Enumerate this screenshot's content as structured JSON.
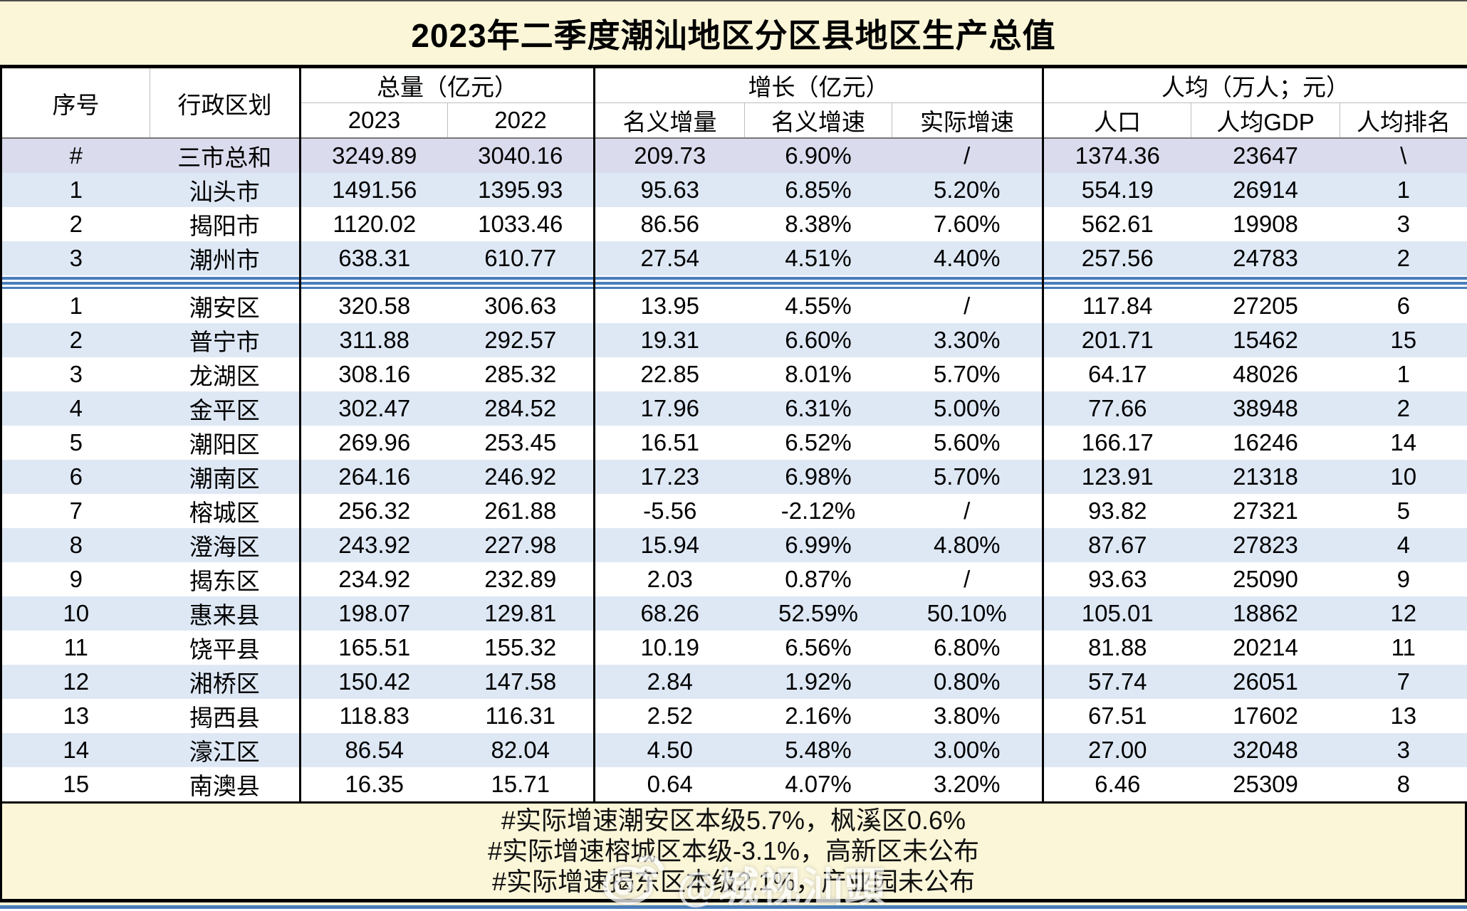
{
  "chart_data": {
    "type": "table",
    "title": "2023年二季度潮汕地区分区县地区生产总值",
    "header": {
      "seq": "序号",
      "region": "行政区划",
      "group_total": "总量（亿元）",
      "group_growth": "增长（亿元）",
      "group_percapita": "人均（万人；元）",
      "col_2023": "2023",
      "col_2022": "2022",
      "col_nominal_increase": "名义增量",
      "col_nominal_rate": "名义增速",
      "col_real_rate": "实际增速",
      "col_population": "人口",
      "col_gdp_per_capita": "人均GDP",
      "col_rank": "人均排名"
    },
    "summary_rows": [
      [
        "#",
        "三市总和",
        "3249.89",
        "3040.16",
        "209.73",
        "6.90%",
        "/",
        "1374.36",
        "23647",
        "\\"
      ],
      [
        "1",
        "汕头市",
        "1491.56",
        "1395.93",
        "95.63",
        "6.85%",
        "5.20%",
        "554.19",
        "26914",
        "1"
      ],
      [
        "2",
        "揭阳市",
        "1120.02",
        "1033.46",
        "86.56",
        "8.38%",
        "7.60%",
        "562.61",
        "19908",
        "3"
      ],
      [
        "3",
        "潮州市",
        "638.31",
        "610.77",
        "27.54",
        "4.51%",
        "4.40%",
        "257.56",
        "24783",
        "2"
      ]
    ],
    "district_rows": [
      [
        "1",
        "潮安区",
        "320.58",
        "306.63",
        "13.95",
        "4.55%",
        "/",
        "117.84",
        "27205",
        "6"
      ],
      [
        "2",
        "普宁市",
        "311.88",
        "292.57",
        "19.31",
        "6.60%",
        "3.30%",
        "201.71",
        "15462",
        "15"
      ],
      [
        "3",
        "龙湖区",
        "308.16",
        "285.32",
        "22.85",
        "8.01%",
        "5.70%",
        "64.17",
        "48026",
        "1"
      ],
      [
        "4",
        "金平区",
        "302.47",
        "284.52",
        "17.96",
        "6.31%",
        "5.00%",
        "77.66",
        "38948",
        "2"
      ],
      [
        "5",
        "潮阳区",
        "269.96",
        "253.45",
        "16.51",
        "6.52%",
        "5.60%",
        "166.17",
        "16246",
        "14"
      ],
      [
        "6",
        "潮南区",
        "264.16",
        "246.92",
        "17.23",
        "6.98%",
        "5.70%",
        "123.91",
        "21318",
        "10"
      ],
      [
        "7",
        "榕城区",
        "256.32",
        "261.88",
        "-5.56",
        "-2.12%",
        "/",
        "93.82",
        "27321",
        "5"
      ],
      [
        "8",
        "澄海区",
        "243.92",
        "227.98",
        "15.94",
        "6.99%",
        "4.80%",
        "87.67",
        "27823",
        "4"
      ],
      [
        "9",
        "揭东区",
        "234.92",
        "232.89",
        "2.03",
        "0.87%",
        "/",
        "93.63",
        "25090",
        "9"
      ],
      [
        "10",
        "惠来县",
        "198.07",
        "129.81",
        "68.26",
        "52.59%",
        "50.10%",
        "105.01",
        "18862",
        "12"
      ],
      [
        "11",
        "饶平县",
        "165.51",
        "155.32",
        "10.19",
        "6.56%",
        "6.80%",
        "81.88",
        "20214",
        "11"
      ],
      [
        "12",
        "湘桥区",
        "150.42",
        "147.58",
        "2.84",
        "1.92%",
        "0.80%",
        "57.74",
        "26051",
        "7"
      ],
      [
        "13",
        "揭西县",
        "118.83",
        "116.31",
        "2.52",
        "2.16%",
        "3.80%",
        "67.51",
        "17602",
        "13"
      ],
      [
        "14",
        "濠江区",
        "86.54",
        "82.04",
        "4.50",
        "5.48%",
        "3.00%",
        "27.00",
        "32048",
        "3"
      ],
      [
        "15",
        "南澳县",
        "16.35",
        "15.71",
        "0.64",
        "4.07%",
        "3.20%",
        "6.46",
        "25309",
        "8"
      ]
    ],
    "notes": [
      "#实际增速潮安区本级5.7%，枫溪区0.6%",
      "#实际增速榕城区本级-3.1%，高新区未公布",
      "#实际增速揭东区本级2.1%，产业园未公布"
    ]
  },
  "watermark": {
    "text": "@城视汕頭",
    "icon": "weibo-eye-logo"
  },
  "colors": {
    "title_background": "#FBF6D8",
    "total_row_background": "#DBDBEE",
    "stripe_row_background": "#DEE8F5",
    "section_divider_blue": "#4A7EBB"
  }
}
